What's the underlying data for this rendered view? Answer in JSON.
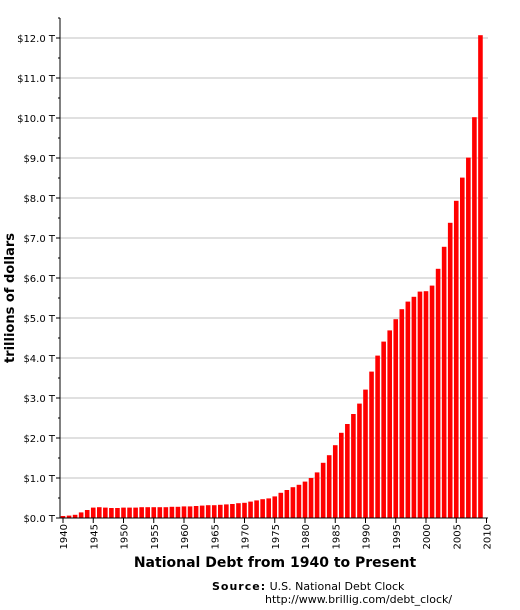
{
  "chart_data": {
    "type": "bar",
    "title": "National Debt from 1940 to Present",
    "ylabel": "trillions of dollars",
    "xlabel": "",
    "ylim": [
      0,
      12
    ],
    "y_ticks": [
      "$0.0 T",
      "$1.0 T",
      "$2.0 T",
      "$3.0 T",
      "$4.0 T",
      "$5.0 T",
      "$6.0 T",
      "$7.0 T",
      "$8.0 T",
      "$9.0 T",
      "$10.0 T",
      "$11.0 T",
      "$12.0 T"
    ],
    "x_ticks": [
      "1940",
      "1945",
      "1950",
      "1955",
      "1960",
      "1965",
      "1970",
      "1975",
      "1980",
      "1985",
      "1990",
      "1995",
      "2000",
      "2005",
      "2010"
    ],
    "grid": true,
    "bar_color": "#ff0000",
    "grid_color": "#c0c0c0",
    "categories": [
      1940,
      1941,
      1942,
      1943,
      1944,
      1945,
      1946,
      1947,
      1948,
      1949,
      1950,
      1951,
      1952,
      1953,
      1954,
      1955,
      1956,
      1957,
      1958,
      1959,
      1960,
      1961,
      1962,
      1963,
      1964,
      1965,
      1966,
      1967,
      1968,
      1969,
      1970,
      1971,
      1972,
      1973,
      1974,
      1975,
      1976,
      1977,
      1978,
      1979,
      1980,
      1981,
      1982,
      1983,
      1984,
      1985,
      1986,
      1987,
      1988,
      1989,
      1990,
      1991,
      1992,
      1993,
      1994,
      1995,
      1996,
      1997,
      1998,
      1999,
      2000,
      2001,
      2002,
      2003,
      2004,
      2005,
      2006,
      2007,
      2008,
      2009
    ],
    "values": [
      0.05,
      0.06,
      0.08,
      0.14,
      0.2,
      0.26,
      0.27,
      0.26,
      0.25,
      0.25,
      0.26,
      0.26,
      0.26,
      0.27,
      0.27,
      0.27,
      0.27,
      0.27,
      0.28,
      0.28,
      0.29,
      0.29,
      0.3,
      0.31,
      0.32,
      0.32,
      0.33,
      0.34,
      0.35,
      0.37,
      0.38,
      0.41,
      0.44,
      0.47,
      0.49,
      0.54,
      0.63,
      0.7,
      0.77,
      0.83,
      0.91,
      1.0,
      1.14,
      1.38,
      1.57,
      1.82,
      2.13,
      2.35,
      2.6,
      2.86,
      3.21,
      3.66,
      4.06,
      4.41,
      4.69,
      4.97,
      5.22,
      5.41,
      5.53,
      5.66,
      5.67,
      5.81,
      6.23,
      6.78,
      7.38,
      7.93,
      8.51,
      9.01,
      10.02,
      12.07
    ]
  },
  "source": {
    "label": "Source:",
    "name": "U.S. National Debt Clock",
    "url": "http://www.brillig.com/debt_clock/"
  }
}
